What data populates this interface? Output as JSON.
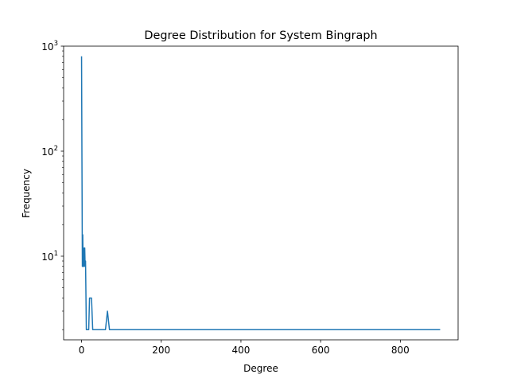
{
  "chart_data": {
    "type": "line",
    "title": "Degree Distribution for System Bingraph",
    "xlabel": "Degree",
    "ylabel": "Frequency",
    "yscale": "log",
    "xlim": [
      -45,
      945
    ],
    "ylim": [
      1.6,
      1000
    ],
    "grid": false,
    "legend": "none",
    "x_ticks": [
      {
        "value": 0,
        "label": "0"
      },
      {
        "value": 200,
        "label": "200"
      },
      {
        "value": 400,
        "label": "400"
      },
      {
        "value": 600,
        "label": "600"
      },
      {
        "value": 800,
        "label": "800"
      }
    ],
    "y_ticks": [
      {
        "value": 10,
        "base": "10",
        "exp": "1"
      },
      {
        "value": 100,
        "base": "10",
        "exp": "2"
      },
      {
        "value": 1000,
        "base": "10",
        "exp": "3"
      }
    ],
    "series": [
      {
        "color": "#1f77b4",
        "x": [
          0,
          1,
          2,
          3,
          4,
          5,
          6,
          7,
          8,
          9,
          10,
          12,
          15,
          18,
          20,
          22,
          25,
          28,
          30,
          35,
          40,
          50,
          55,
          60,
          65,
          70,
          80,
          100,
          200,
          300,
          400,
          500,
          600,
          700,
          800,
          900
        ],
        "y": [
          800,
          80,
          8,
          16,
          8,
          12,
          8,
          10,
          12,
          8,
          9,
          2,
          2,
          2,
          4,
          4,
          4,
          2,
          2,
          2,
          2,
          2,
          2,
          2,
          3,
          2,
          2,
          2,
          2,
          2,
          2,
          2,
          2,
          2,
          2,
          2
        ]
      }
    ]
  }
}
